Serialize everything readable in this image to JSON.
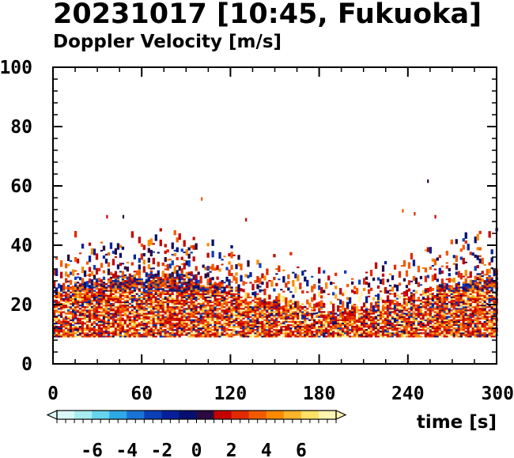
{
  "title": "20231017 [10:45, Fukuoka]",
  "subtitle": "Doppler Velocity [m/s]",
  "chart_data": {
    "type": "heatmap",
    "title": "20231017 [10:45, Fukuoka]",
    "subtitle": "Doppler Velocity [m/s]",
    "xlabel": "time [s]",
    "ylabel": "",
    "xlim": [
      0,
      300
    ],
    "ylim": [
      0,
      100
    ],
    "x_ticks": [
      0,
      60,
      120,
      180,
      240,
      300
    ],
    "y_ticks": [
      0,
      20,
      40,
      60,
      80,
      100
    ],
    "x_tick_labels": [
      "0",
      "60",
      "120",
      "180",
      "240",
      "300"
    ],
    "y_tick_labels": [
      "0",
      "20",
      "40",
      "60",
      "80",
      "100"
    ],
    "grid": false,
    "colorbar": {
      "label": "Doppler Velocity [m/s]",
      "range": [
        -8,
        8
      ],
      "ticks": [
        -6,
        -4,
        -2,
        0,
        2,
        4,
        6
      ],
      "tick_labels": [
        "-6",
        "-4",
        "-2",
        "0",
        "2",
        "4",
        "6"
      ],
      "colors": [
        "#d9f7f7",
        "#a8ecf2",
        "#66d4ee",
        "#2fa8e6",
        "#1a73d6",
        "#0c3fb8",
        "#07209a",
        "#050f6e",
        "#2a0a40",
        "#c40000",
        "#e02a00",
        "#f25a00",
        "#f98a00",
        "#fcb52a",
        "#fde066",
        "#fff5b0"
      ]
    },
    "series": [
      {
        "time_range": [
          0,
          300
        ],
        "height_range": [
          9,
          12
        ],
        "description_band": "dense"
      },
      {
        "time_range": [
          0,
          300
        ],
        "height_range": [
          12,
          24
        ],
        "description_band": "dense"
      },
      {
        "time_range": [
          0,
          300
        ],
        "height_range": [
          24,
          32
        ],
        "description_band": "medium"
      },
      {
        "time_range": [
          0,
          300
        ],
        "height_range": [
          32,
          45
        ],
        "description_band": "sparse"
      }
    ],
    "echo_bottom": 9,
    "echo_typical_top": 25
  }
}
